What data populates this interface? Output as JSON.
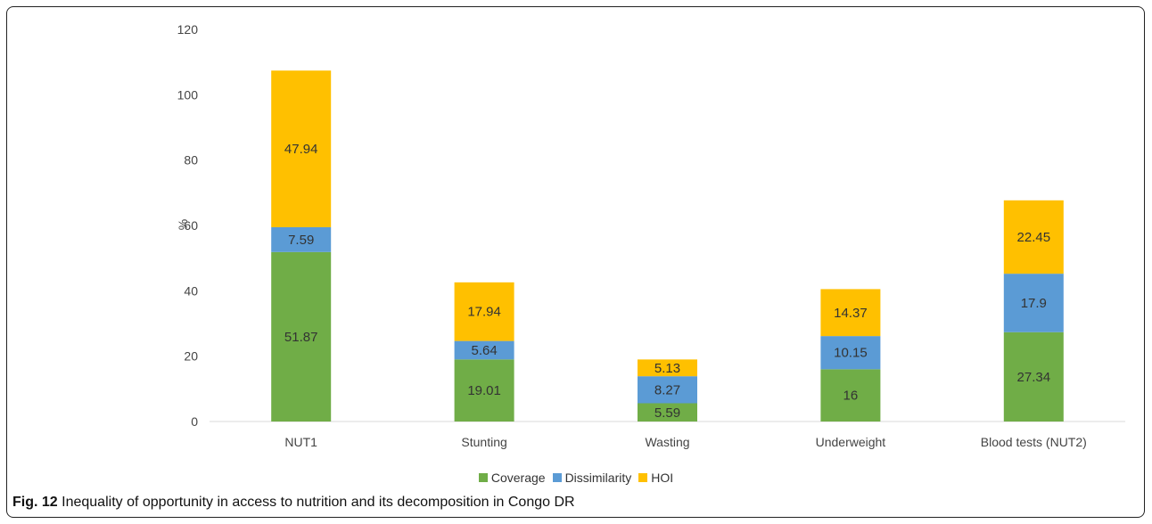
{
  "caption": {
    "label": "Fig. 12",
    "text": "Inequality of opportunity in access to nutrition and its decomposition in Congo DR"
  },
  "chart_data": {
    "type": "bar",
    "stacked": true,
    "categories": [
      "NUT1",
      "Stunting",
      "Wasting",
      "Underweight",
      "Blood tests (NUT2)"
    ],
    "series": [
      {
        "name": "Coverage",
        "values": [
          51.87,
          19.01,
          5.59,
          16,
          27.34
        ],
        "labels": [
          "51.87",
          "19.01",
          "5.59",
          "16",
          "27.34"
        ],
        "color": "#70ad47"
      },
      {
        "name": "Dissimilarity",
        "values": [
          7.59,
          5.64,
          8.27,
          10.15,
          17.9
        ],
        "labels": [
          "7.59",
          "5.64",
          "8.27",
          "10.15",
          "17.9"
        ],
        "color": "#5b9bd5"
      },
      {
        "name": "HOI",
        "values": [
          47.94,
          17.94,
          5.13,
          14.37,
          22.45
        ],
        "labels": [
          "47.94",
          "17.94",
          "5.13",
          "14.37",
          "22.45"
        ],
        "color": "#ffc000"
      }
    ],
    "ylabel": "%",
    "ylim": [
      0,
      120
    ],
    "yticks": [
      "0",
      "20",
      "40",
      "60",
      "80",
      "100",
      "120"
    ],
    "grid": false,
    "legend": "bottom"
  }
}
